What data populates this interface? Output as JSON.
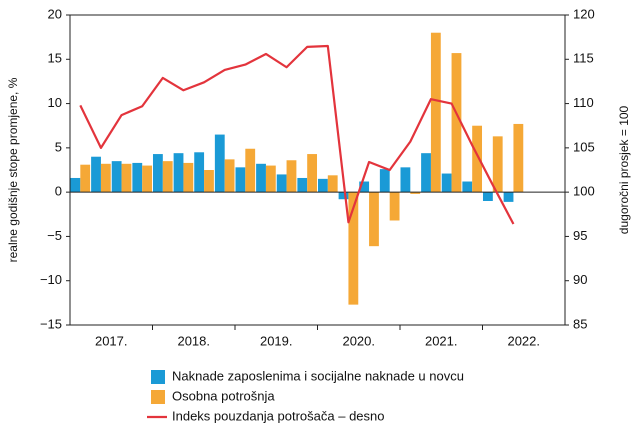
{
  "chart_data": {
    "type": "bar_line",
    "ylabel": "realne godišnje stope promjene, %",
    "y2label": "dugoročni prosjek = 100",
    "groups": [
      "2017.",
      "2018.",
      "2019.",
      "2020.",
      "2021.",
      "2022."
    ],
    "ylim": [
      -15,
      20
    ],
    "yticks": [
      {
        "value": -15,
        "label": "−15"
      },
      {
        "value": -10,
        "label": "−10"
      },
      {
        "value": -5,
        "label": "−5"
      },
      0,
      5,
      10,
      15,
      20
    ],
    "y2lim": [
      85,
      120
    ],
    "y2ticks": [
      85,
      90,
      95,
      100,
      105,
      110,
      115,
      120
    ],
    "series": [
      {
        "name": "Naknade zaposlenima i socijalne naknade u novcu",
        "color": "#1a9ad6",
        "kind": "bar",
        "values": [
          1.6,
          4.0,
          3.5,
          3.3,
          4.3,
          4.4,
          4.5,
          6.5,
          2.8,
          3.2,
          2.0,
          1.6,
          1.5,
          -0.8,
          1.2,
          2.6,
          2.8,
          4.4,
          2.1,
          1.2,
          -1.0,
          -1.1,
          null,
          null
        ]
      },
      {
        "name": "Osobna potrošnja",
        "color": "#f5a836",
        "kind": "bar",
        "values": [
          3.1,
          3.2,
          3.2,
          3.0,
          3.5,
          3.3,
          2.5,
          3.7,
          4.9,
          3.0,
          3.6,
          4.3,
          1.9,
          -12.7,
          -6.1,
          -3.2,
          -0.2,
          18.0,
          15.7,
          7.5,
          6.3,
          7.7,
          null,
          null
        ]
      },
      {
        "name": "Indeks pouzdanja potrošača – desno",
        "color": "#e3343c",
        "kind": "line",
        "axis": "y2",
        "values": [
          109.8,
          105.0,
          108.7,
          109.7,
          112.9,
          111.5,
          112.4,
          113.8,
          114.4,
          115.6,
          114.1,
          116.4,
          116.5,
          96.6,
          103.4,
          102.5,
          105.7,
          110.5,
          110.0,
          105.3,
          100.8,
          96.4,
          null,
          null
        ]
      }
    ]
  }
}
